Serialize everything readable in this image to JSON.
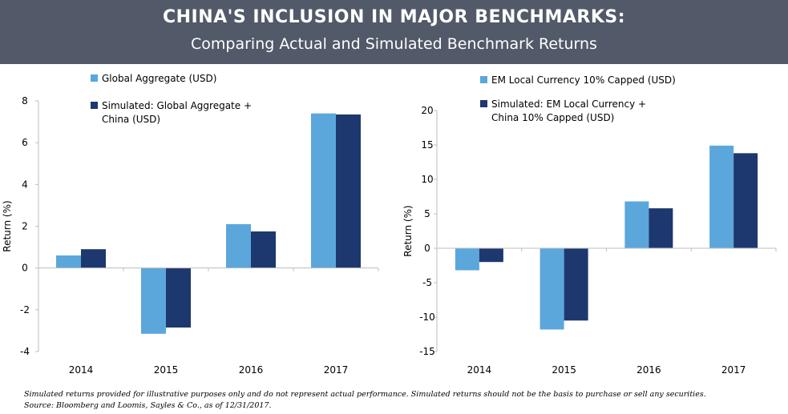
{
  "header": {
    "title": "CHINA'S INCLUSION IN MAJOR BENCHMARKS:",
    "subtitle": "Comparing Actual and Simulated Benchmark Returns"
  },
  "colors": {
    "actual": "#5ba7dc",
    "simulated": "#1d386e",
    "banner": "#525968"
  },
  "chart_data": [
    {
      "type": "bar",
      "categories": [
        "2014",
        "2015",
        "2016",
        "2017"
      ],
      "series": [
        {
          "name": "Global Aggregate (USD)",
          "values": [
            0.6,
            -3.15,
            2.1,
            7.4
          ]
        },
        {
          "name": "Simulated: Global Aggregate + China (USD)",
          "values": [
            0.9,
            -2.85,
            1.75,
            7.35
          ]
        }
      ],
      "legend": [
        {
          "lines": [
            "Global Aggregate (USD)"
          ]
        },
        {
          "lines": [
            "Simulated: Global Aggregate +",
            "China (USD)"
          ]
        }
      ],
      "ylabel": "Return (%)",
      "ylim": [
        -4,
        8
      ],
      "yticks": [
        "-4",
        "-2",
        "0",
        "2",
        "4",
        "6",
        "8"
      ],
      "legend_position": "top-left",
      "grid": false
    },
    {
      "type": "bar",
      "categories": [
        "2014",
        "2015",
        "2016",
        "2017"
      ],
      "series": [
        {
          "name": "EM Local Currency 10% Capped (USD)",
          "values": [
            -3.2,
            -11.8,
            6.8,
            14.9
          ]
        },
        {
          "name": "Simulated: EM Local Currency + China 10% Capped (USD)",
          "values": [
            -2.0,
            -10.5,
            5.8,
            13.8
          ]
        }
      ],
      "legend": [
        {
          "lines": [
            "EM Local Currency 10% Capped (USD)"
          ]
        },
        {
          "lines": [
            "Simulated: EM Local Currency +",
            "China 10% Capped (USD)"
          ]
        }
      ],
      "ylabel": "Return (%)",
      "ylim": [
        -15,
        20
      ],
      "yticks": [
        "-15",
        "-10",
        "-5",
        "0",
        "5",
        "10",
        "15",
        "20"
      ],
      "legend_position": "top-left",
      "grid": false
    }
  ],
  "footnote": {
    "line1": "Simulated returns provided for illustrative purposes only and do not represent actual performance. Simulated returns should not be the basis to purchase or sell any securities.",
    "line2": "Source: Bloomberg and Loomis, Sayles & Co., as of  12/31/2017."
  }
}
